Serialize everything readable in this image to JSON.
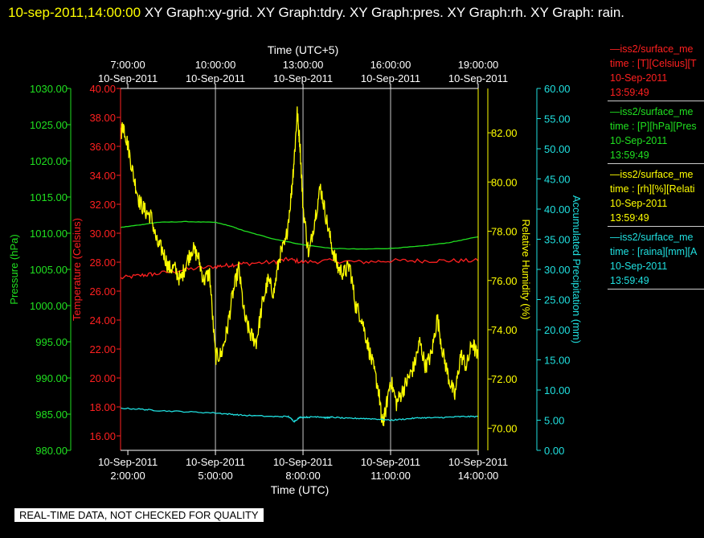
{
  "header": {
    "timestamp": "10-sep-2011,14:00:00",
    "rest": " XY Graph:xy-grid.  XY Graph:tdry.  XY Graph:pres.  XY Graph:rh.  XY Graph: rain."
  },
  "legend": [
    {
      "name": "—iss2/surface_me",
      "units": "time : [T][Celsius][T",
      "date": "10-Sep-2011",
      "time": "13:59:49",
      "color": "#ff2020"
    },
    {
      "name": "—iss2/surface_me",
      "units": "time : [P][hPa][Pres",
      "date": "10-Sep-2011",
      "time": "13:59:49",
      "color": "#20e020"
    },
    {
      "name": "—iss2/surface_me",
      "units": "time : [rh][%][Relati",
      "date": "10-Sep-2011",
      "time": "13:59:49",
      "color": "#ffff00"
    },
    {
      "name": "—iss2/surface_me",
      "units": "time : [raina][mm][A",
      "date": "10-Sep-2011",
      "time": "13:59:49",
      "color": "#20e0e0"
    }
  ],
  "footer_note": "REAL-TIME DATA, NOT CHECKED FOR QUALITY",
  "colors": {
    "temperature": "#ff2020",
    "pressure": "#20e020",
    "rh": "#ffff00",
    "precip": "#20e0e0",
    "axis": "#ffffff"
  },
  "chart_data": {
    "type": "line",
    "xlabel_bottom": "Time (UTC)",
    "xlabel_top": "Time (UTC+5)",
    "x_ticks_bottom": [
      {
        "date": "10-Sep-2011",
        "time": "2:00:00"
      },
      {
        "date": "10-Sep-2011",
        "time": "5:00:00"
      },
      {
        "date": "10-Sep-2011",
        "time": "8:00:00"
      },
      {
        "date": "10-Sep-2011",
        "time": "11:00:00"
      },
      {
        "date": "10-Sep-2011",
        "time": "14:00:00"
      }
    ],
    "x_ticks_top": [
      {
        "time": "7:00:00",
        "date": "10-Sep-2011"
      },
      {
        "time": "10:00:00",
        "date": "10-Sep-2011"
      },
      {
        "time": "13:00:00",
        "date": "10-Sep-2011"
      },
      {
        "time": "16:00:00",
        "date": "10-Sep-2011"
      },
      {
        "time": "19:00:00",
        "date": "10-Sep-2011"
      }
    ],
    "x_range_utc_hours": [
      1.75,
      14.0
    ],
    "grid_x_hours": [
      5,
      8,
      11
    ],
    "axes": {
      "pressure": {
        "label": "Pressure (hPa)",
        "range": [
          980,
          1030
        ],
        "ticks": [
          "980.00",
          "985.00",
          "990.00",
          "995.00",
          "1000.00",
          "1005.00",
          "1010.00",
          "1015.00",
          "1020.00",
          "1025.00",
          "1030.00"
        ]
      },
      "temperature": {
        "label": "Temperature (Celsius)",
        "range": [
          15,
          40
        ],
        "ticks": [
          "16.00",
          "18.00",
          "20.00",
          "22.00",
          "24.00",
          "26.00",
          "28.00",
          "30.00",
          "32.00",
          "34.00",
          "36.00",
          "38.00",
          "40.00"
        ]
      },
      "rh": {
        "label": "Relative Humidity (%)",
        "range": [
          69.1,
          83.8
        ],
        "ticks": [
          "70.00",
          "72.00",
          "74.00",
          "76.00",
          "78.00",
          "80.00",
          "82.00"
        ]
      },
      "precip": {
        "label": "Accumulated Precipitation (mm)",
        "range": [
          0,
          60
        ],
        "ticks": [
          "0.00",
          "5.00",
          "10.00",
          "15.00",
          "20.00",
          "25.00",
          "30.00",
          "35.00",
          "40.00",
          "45.00",
          "50.00",
          "55.00",
          "60.00"
        ]
      }
    },
    "series": [
      {
        "key": "temperature",
        "axis": "temperature",
        "noise": 0.15,
        "x": [
          1.75,
          2.5,
          3,
          4,
          5,
          5.5,
          6,
          7,
          7.5,
          8,
          9,
          10,
          11,
          12,
          13,
          14
        ],
        "y": [
          26.9,
          27.1,
          27.2,
          27.5,
          27.7,
          27.8,
          27.9,
          28.0,
          28.2,
          28.0,
          28.1,
          28.0,
          28.1,
          28.1,
          28.1,
          28.1
        ]
      },
      {
        "key": "pressure",
        "axis": "pressure",
        "noise": 0.03,
        "x": [
          1.75,
          2.5,
          3,
          4,
          5,
          5.5,
          6,
          7,
          8,
          9,
          10,
          11,
          12,
          13,
          14
        ],
        "y": [
          1010.8,
          1011.2,
          1011.5,
          1011.6,
          1011.5,
          1011.0,
          1010.3,
          1009.2,
          1008.4,
          1007.9,
          1007.8,
          1007.9,
          1008.2,
          1008.7,
          1009.5
        ]
      },
      {
        "key": "rh",
        "axis": "rh",
        "noise": 0.35,
        "x": [
          1.75,
          1.85,
          2,
          2.2,
          2.4,
          2.6,
          2.8,
          3,
          3.2,
          3.4,
          3.6,
          3.8,
          4.0,
          4.2,
          4.4,
          4.6,
          4.8,
          5.0,
          5.2,
          5.4,
          5.6,
          5.8,
          6.0,
          6.2,
          6.4,
          6.6,
          6.8,
          7.0,
          7.2,
          7.4,
          7.6,
          7.7,
          7.8,
          7.9,
          8.0,
          8.2,
          8.4,
          8.6,
          8.8,
          9.0,
          9.2,
          9.4,
          9.6,
          9.8,
          10.0,
          10.2,
          10.4,
          10.6,
          10.7,
          10.8,
          11.0,
          11.2,
          11.4,
          11.6,
          11.8,
          12.0,
          12.2,
          12.4,
          12.6,
          12.8,
          13.0,
          13.2,
          13.4,
          13.6,
          13.8,
          14.0
        ],
        "y": [
          82.0,
          82.3,
          81.5,
          80.2,
          79.2,
          78.8,
          78.6,
          77.5,
          77.2,
          76.5,
          76.5,
          76.0,
          76.7,
          77.3,
          77.0,
          76.0,
          76.3,
          72.9,
          73.0,
          74.0,
          75.5,
          76.5,
          74.5,
          73.8,
          73.5,
          75.0,
          76.0,
          75.5,
          77.0,
          77.5,
          79.5,
          81.0,
          82.8,
          81.5,
          79.0,
          77.0,
          78.5,
          79.8,
          78.5,
          77.3,
          76.5,
          76.3,
          76.6,
          75.0,
          74.5,
          73.5,
          72.5,
          71.5,
          70.2,
          70.5,
          72.0,
          71.0,
          71.5,
          72.0,
          72.5,
          73.5,
          72.5,
          73.0,
          74.5,
          73.0,
          72.0,
          71.3,
          73.0,
          72.5,
          73.5,
          72.8
        ]
      },
      {
        "key": "precip",
        "axis": "precip",
        "noise": 0.1,
        "x": [
          1.75,
          2.5,
          3,
          4,
          5,
          5.5,
          6,
          7,
          7.5,
          7.7,
          7.9,
          8.2,
          8.5,
          8.8,
          9.0,
          9.5,
          10,
          10.5,
          11,
          11.5,
          12,
          12.5,
          13,
          13.5,
          14
        ],
        "y": [
          7.0,
          6.8,
          6.6,
          6.4,
          6.2,
          6.0,
          5.8,
          5.6,
          5.6,
          4.8,
          5.5,
          5.5,
          5.6,
          5.4,
          5.5,
          5.3,
          5.3,
          5.2,
          5.0,
          5.2,
          5.4,
          5.4,
          5.5,
          5.6,
          5.6
        ]
      }
    ]
  }
}
